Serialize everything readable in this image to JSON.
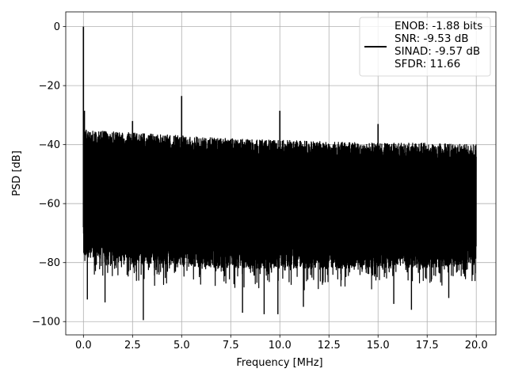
{
  "chart_data": {
    "type": "line",
    "title": "",
    "xlabel": "Frequency [MHz]",
    "ylabel": "PSD [dB]",
    "xlim": [
      -0.9,
      21.0
    ],
    "ylim": [
      -104.5,
      5.0
    ],
    "x_ticks": [
      0.0,
      2.5,
      5.0,
      7.5,
      10.0,
      12.5,
      15.0,
      17.5,
      20.0
    ],
    "x_tick_labels": [
      "0.0",
      "2.5",
      "5.0",
      "7.5",
      "10.0",
      "12.5",
      "15.0",
      "17.5",
      "20.0"
    ],
    "y_ticks": [
      0,
      -20,
      -40,
      -60,
      -80,
      -100
    ],
    "y_tick_labels": [
      "0",
      "−20",
      "−40",
      "−60",
      "−80",
      "−100"
    ],
    "grid": true,
    "legend_position": "top-right",
    "series": [
      {
        "name": "ENOB: -1.88 bits\nSNR: -9.53 dB\nSINAD: -9.57 dB\nSFDR: 11.66",
        "legend_lines": [
          "ENOB: -1.88 bits",
          "SNR: -9.53 dB",
          "SINAD: -9.57 dB",
          "SFDR: 11.66"
        ],
        "color": "#000000",
        "x_range": [
          0.0,
          20.0
        ],
        "noise_ceiling_db": [
          {
            "x": 0.0,
            "y": -35.0
          },
          {
            "x": 2.5,
            "y": -36.0
          },
          {
            "x": 5.0,
            "y": -37.0
          },
          {
            "x": 7.5,
            "y": -38.0
          },
          {
            "x": 10.0,
            "y": -38.5
          },
          {
            "x": 12.5,
            "y": -39.0
          },
          {
            "x": 15.0,
            "y": -39.5
          },
          {
            "x": 17.5,
            "y": -39.5
          },
          {
            "x": 20.0,
            "y": -40.0
          }
        ],
        "noise_floor_db": [
          {
            "x": 0.0,
            "y": -78.0
          },
          {
            "x": 2.5,
            "y": -80.0
          },
          {
            "x": 5.0,
            "y": -81.0
          },
          {
            "x": 7.5,
            "y": -82.0
          },
          {
            "x": 10.0,
            "y": -82.0
          },
          {
            "x": 12.5,
            "y": -82.0
          },
          {
            "x": 15.0,
            "y": -82.0
          },
          {
            "x": 17.5,
            "y": -82.0
          },
          {
            "x": 20.0,
            "y": -80.0
          }
        ],
        "peaks": [
          {
            "x": 0.0,
            "y": 0.0
          },
          {
            "x": 0.05,
            "y": -28.5
          },
          {
            "x": 2.5,
            "y": -32.0
          },
          {
            "x": 5.0,
            "y": -23.5
          },
          {
            "x": 10.0,
            "y": -28.5
          },
          {
            "x": 15.0,
            "y": -33.0
          }
        ],
        "deep_dips": [
          {
            "x": 0.2,
            "y": -92.5
          },
          {
            "x": 1.1,
            "y": -93.5
          },
          {
            "x": 3.05,
            "y": -99.5
          },
          {
            "x": 8.1,
            "y": -97.0
          },
          {
            "x": 9.2,
            "y": -97.5
          },
          {
            "x": 9.9,
            "y": -97.5
          },
          {
            "x": 11.2,
            "y": -95.0
          },
          {
            "x": 15.8,
            "y": -94.0
          },
          {
            "x": 16.7,
            "y": -96.0
          },
          {
            "x": 18.6,
            "y": -92.0
          }
        ]
      }
    ]
  }
}
